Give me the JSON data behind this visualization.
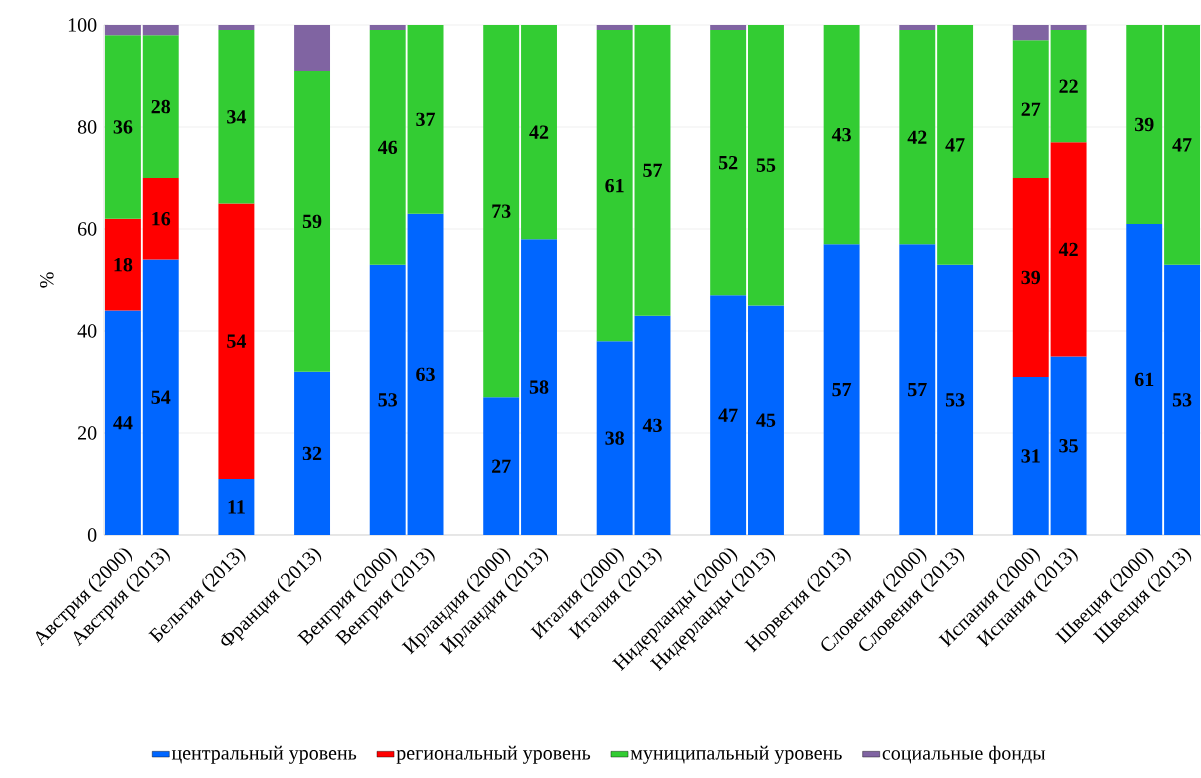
{
  "chart_data": {
    "type": "bar",
    "stacked": true,
    "ylabel": "%",
    "ylim": [
      0,
      100
    ],
    "yticks": [
      0,
      20,
      40,
      60,
      80,
      100
    ],
    "grid": "y",
    "legend": "bottom",
    "categories": [
      "Австрия (2000)",
      "Австрия (2013)",
      null,
      "Бельгия (2013)",
      null,
      "Франция (2013)",
      null,
      "Венгрия (2000)",
      "Венгрия (2013)",
      null,
      "Ирландия (2000)",
      "Ирландия (2013)",
      null,
      "Италия (2000)",
      "Италия (2013)",
      null,
      "Нидерланды (2000)",
      "Нидерланды (2013)",
      null,
      "Норвегия (2013)",
      null,
      "Словения (2000)",
      "Словения (2013)",
      null,
      "Испания (2000)",
      "Испания (2013)",
      null,
      "Швеция (2000)",
      "Швеция (2013)"
    ],
    "series": [
      {
        "name": "центральный уровень",
        "color": "#0066ff",
        "values": [
          44,
          54,
          null,
          11,
          null,
          32,
          null,
          53,
          63,
          null,
          27,
          58,
          null,
          38,
          43,
          null,
          47,
          45,
          null,
          57,
          null,
          57,
          53,
          null,
          31,
          35,
          null,
          61,
          53
        ],
        "value_labels": [
          "44",
          "54",
          null,
          "11",
          null,
          "32",
          null,
          "53",
          "63",
          null,
          "27",
          "58",
          null,
          "38",
          "43",
          null,
          "47",
          "45",
          null,
          "57",
          null,
          "57",
          "53",
          null,
          "31",
          "35",
          null,
          "61",
          "53"
        ]
      },
      {
        "name": "региональный уровень",
        "color": "#ff0000",
        "values": [
          18,
          16,
          null,
          54,
          null,
          null,
          null,
          null,
          null,
          null,
          null,
          null,
          null,
          null,
          null,
          null,
          null,
          null,
          null,
          null,
          null,
          null,
          null,
          null,
          39,
          42,
          null,
          null,
          null
        ],
        "value_labels": [
          "18",
          "16",
          null,
          "54",
          null,
          null,
          null,
          null,
          null,
          null,
          null,
          null,
          null,
          null,
          null,
          null,
          null,
          null,
          null,
          null,
          null,
          null,
          null,
          null,
          "39",
          "42",
          null,
          null,
          null
        ]
      },
      {
        "name": "муниципальный уровень",
        "color": "#33cc33",
        "values": [
          36,
          28,
          null,
          34,
          null,
          59,
          null,
          46,
          37,
          null,
          73,
          42,
          null,
          61,
          57,
          null,
          52,
          55,
          null,
          43,
          null,
          42,
          47,
          null,
          27,
          22,
          null,
          39,
          47
        ],
        "value_labels": [
          "36",
          "28",
          null,
          "34",
          null,
          "59",
          null,
          "46",
          "37",
          null,
          "73",
          "42",
          null,
          "61",
          "57",
          null,
          "52",
          "55",
          null,
          "43",
          null,
          "42",
          "47",
          null,
          "27",
          "22",
          null,
          "39",
          "47"
        ]
      },
      {
        "name": "социальные фонды",
        "color": "#8064a2",
        "values": [
          2,
          2,
          null,
          1,
          null,
          9,
          null,
          1,
          null,
          null,
          null,
          null,
          null,
          1,
          null,
          null,
          1,
          null,
          null,
          null,
          null,
          1,
          null,
          null,
          3,
          1,
          null,
          null,
          null
        ]
      }
    ]
  }
}
